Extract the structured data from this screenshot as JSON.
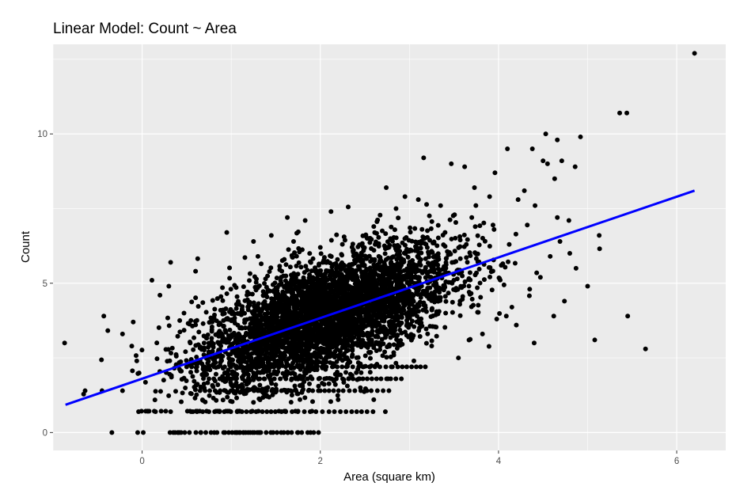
{
  "chart_data": {
    "type": "scatter",
    "title": "Linear Model: Count ~ Area",
    "xlabel": "Area (square km)",
    "ylabel": "Count",
    "xlim": [
      -1.0,
      6.55
    ],
    "ylim": [
      -0.6,
      13.0
    ],
    "x_ticks": [
      0,
      2,
      4,
      6
    ],
    "y_ticks": [
      0,
      5,
      10
    ],
    "x_tick_labels": [
      "0",
      "2",
      "4",
      "6"
    ],
    "y_tick_labels": [
      "0",
      "5",
      "10"
    ],
    "grid": true,
    "legend": "none",
    "colors": {
      "panel_background": "#ebebeb",
      "grid": "#ffffff",
      "points": "#000000",
      "fit_line": "#0000ff"
    },
    "fit_line": {
      "x": [
        -0.86,
        6.2
      ],
      "y": [
        0.93,
        8.1
      ]
    },
    "points_visible": [
      [
        -0.87,
        3.0
      ],
      [
        -0.64,
        1.4
      ],
      [
        -0.45,
        1.4
      ],
      [
        -0.43,
        3.9
      ],
      [
        -0.22,
        1.4
      ],
      [
        -0.22,
        3.3
      ],
      [
        -0.1,
        3.7
      ],
      [
        -0.06,
        2.4
      ],
      [
        0.11,
        5.1
      ],
      [
        0.32,
        5.7
      ],
      [
        0.54,
        3.0
      ],
      [
        -0.05,
        0.0
      ],
      [
        0.37,
        0.0
      ],
      [
        0.4,
        0.0
      ],
      [
        -0.04,
        0.7
      ],
      [
        0.15,
        0.7
      ],
      [
        0.32,
        0.7
      ],
      [
        0.57,
        0.7
      ],
      [
        0.66,
        0.0
      ],
      [
        0.81,
        0.0
      ],
      [
        0.93,
        0.0
      ],
      [
        1.01,
        0.0
      ],
      [
        1.06,
        0.0
      ],
      [
        1.1,
        0.0
      ],
      [
        1.14,
        0.0
      ],
      [
        1.19,
        0.0
      ],
      [
        1.24,
        0.0
      ],
      [
        1.32,
        0.0
      ],
      [
        1.47,
        0.0
      ],
      [
        1.59,
        0.0
      ],
      [
        1.75,
        0.0
      ],
      [
        1.89,
        0.0
      ],
      [
        1.98,
        0.0
      ],
      [
        2.73,
        0.7
      ],
      [
        2.44,
        1.8
      ],
      [
        2.76,
        1.8
      ],
      [
        1.63,
        7.2
      ],
      [
        1.83,
        7.1
      ],
      [
        2.12,
        7.4
      ],
      [
        2.74,
        8.2
      ],
      [
        3.16,
        9.2
      ],
      [
        3.47,
        9.0
      ],
      [
        3.62,
        8.9
      ],
      [
        3.96,
        8.7
      ],
      [
        4.1,
        9.5
      ],
      [
        4.38,
        9.5
      ],
      [
        4.53,
        10.0
      ],
      [
        4.66,
        9.8
      ],
      [
        4.5,
        9.1
      ],
      [
        4.55,
        9.0
      ],
      [
        4.71,
        9.1
      ],
      [
        4.92,
        9.9
      ],
      [
        4.86,
        8.9
      ],
      [
        4.63,
        8.5
      ],
      [
        4.41,
        7.6
      ],
      [
        4.66,
        7.2
      ],
      [
        4.79,
        7.1
      ],
      [
        4.87,
        5.5
      ],
      [
        5.0,
        4.9
      ],
      [
        4.74,
        4.4
      ],
      [
        4.62,
        3.9
      ],
      [
        4.4,
        3.0
      ],
      [
        4.2,
        3.6
      ],
      [
        5.13,
        6.6
      ],
      [
        5.08,
        3.1
      ],
      [
        5.36,
        10.7
      ],
      [
        5.44,
        10.7
      ],
      [
        5.45,
        3.9
      ],
      [
        5.65,
        2.8
      ],
      [
        6.2,
        12.7
      ],
      [
        0.95,
        6.7
      ],
      [
        1.25,
        6.4
      ],
      [
        1.45,
        6.6
      ],
      [
        2.95,
        7.9
      ],
      [
        3.1,
        7.8
      ],
      [
        3.35,
        7.6
      ],
      [
        3.73,
        8.2
      ],
      [
        3.9,
        7.9
      ],
      [
        4.22,
        7.8
      ],
      [
        4.29,
        8.1
      ],
      [
        0.2,
        4.6
      ],
      [
        0.3,
        4.9
      ],
      [
        0.47,
        4.0
      ],
      [
        0.6,
        5.4
      ],
      [
        0.7,
        2.2
      ],
      [
        0.85,
        1.6
      ],
      [
        1.0,
        1.6
      ],
      [
        1.15,
        1.4
      ],
      [
        1.3,
        1.4
      ],
      [
        1.5,
        1.6
      ],
      [
        1.75,
        1.3
      ],
      [
        2.0,
        1.4
      ],
      [
        2.2,
        1.1
      ],
      [
        2.45,
        1.5
      ],
      [
        2.6,
        1.1
      ],
      [
        3.05,
        2.4
      ],
      [
        3.25,
        2.9
      ],
      [
        3.55,
        2.5
      ],
      [
        3.82,
        3.3
      ],
      [
        3.98,
        3.8
      ],
      [
        4.15,
        4.2
      ],
      [
        4.35,
        4.8
      ],
      [
        4.47,
        5.2
      ],
      [
        4.58,
        5.9
      ],
      [
        4.69,
        6.4
      ],
      [
        4.8,
        6.0
      ],
      [
        3.4,
        6.7
      ],
      [
        3.7,
        7.2
      ],
      [
        3.95,
        6.8
      ],
      [
        4.12,
        6.3
      ],
      [
        2.6,
        6.9
      ],
      [
        2.85,
        7.5
      ],
      [
        2.0,
        6.2
      ],
      [
        1.7,
        6.4
      ],
      [
        1.3,
        5.9
      ]
    ]
  }
}
